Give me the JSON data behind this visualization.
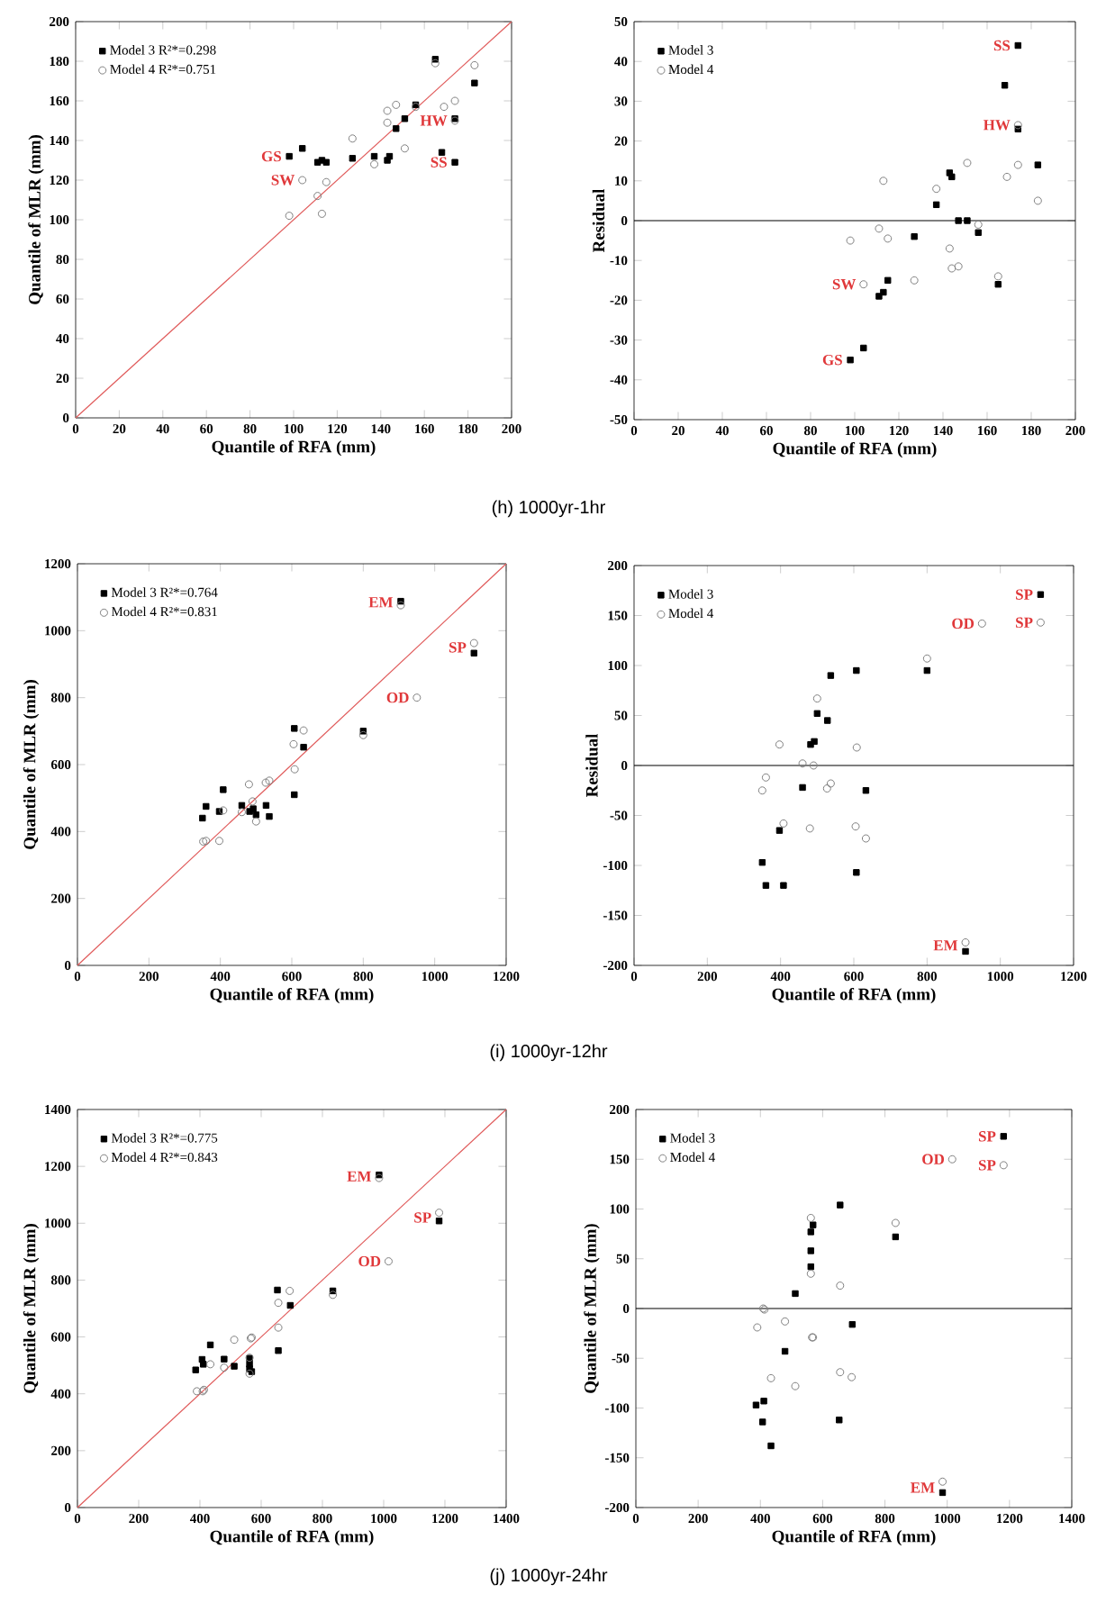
{
  "chart_data": [
    {
      "type": "scatter",
      "xlabel": "Quantile of RFA (mm)",
      "ylabel": "Quantile of MLR (mm)",
      "xlim": [
        0,
        200
      ],
      "ylim": [
        0,
        200
      ],
      "xticks": [
        0,
        20,
        40,
        60,
        80,
        100,
        120,
        140,
        160,
        180,
        200
      ],
      "yticks": [
        0,
        20,
        40,
        60,
        80,
        100,
        120,
        140,
        160,
        180,
        200
      ],
      "legend": "top left",
      "series": [
        {
          "name": "Model 3  R²*=0.298",
          "color": "#000000",
          "marker": "square",
          "x": [
            98,
            104,
            111,
            113,
            115,
            127,
            137,
            143,
            144,
            147,
            151,
            156,
            165,
            168,
            174,
            174,
            183
          ],
          "values": [
            132,
            136,
            129,
            130,
            129,
            131,
            132,
            130,
            132,
            146,
            151,
            158,
            181,
            134,
            129,
            151,
            169
          ]
        },
        {
          "name": "Model 4  R²*=0.751",
          "color": "#808080",
          "marker": "circle",
          "x": [
            98,
            104,
            111,
            113,
            115,
            127,
            137,
            143,
            143,
            147,
            151,
            156,
            165,
            169,
            174,
            174,
            183
          ],
          "values": [
            102,
            120,
            112,
            103,
            119,
            141,
            128,
            155,
            149,
            158,
            136,
            157,
            179,
            157,
            160,
            150,
            178
          ]
        },
        {
          "type": "line",
          "color": "#e05a5a",
          "marker": "none",
          "x": [
            0,
            200
          ],
          "values": [
            0,
            200
          ]
        }
      ],
      "annotations": [
        {
          "text": "GS",
          "x": 98,
          "y": 132
        },
        {
          "text": "SW",
          "x": 104,
          "y": 120
        },
        {
          "text": "HW",
          "x": 174,
          "y": 150
        },
        {
          "text": "SS",
          "x": 174,
          "y": 129
        },
        "(h)  1000yr-1hr"
      ]
    },
    {
      "type": "scatter",
      "xlabel": "Quantile of RFA (mm)",
      "ylabel": "Residual",
      "xlim": [
        0,
        200
      ],
      "ylim": [
        -50,
        50
      ],
      "xticks": [
        0,
        20,
        40,
        60,
        80,
        100,
        120,
        140,
        160,
        180,
        200
      ],
      "yticks": [
        -50,
        -40,
        -30,
        -20,
        -10,
        0,
        10,
        20,
        30,
        40,
        50
      ],
      "legend": "top left",
      "series": [
        {
          "name": "Model 3",
          "color": "#000000",
          "marker": "square",
          "x": [
            98,
            104,
            111,
            113,
            115,
            127,
            137,
            143,
            144,
            147,
            151,
            156,
            165,
            168,
            174,
            174,
            183
          ],
          "values": [
            -35,
            -32,
            -19,
            -18,
            -15,
            -4,
            4,
            12,
            11,
            0,
            0,
            -3,
            -16,
            34,
            44,
            23,
            14
          ]
        },
        {
          "name": "Model 4",
          "color": "#808080",
          "marker": "circle",
          "x": [
            98,
            104,
            111,
            113,
            115,
            127,
            137,
            143,
            144,
            147,
            151,
            156,
            165,
            169,
            174,
            174,
            183
          ],
          "values": [
            -5,
            -16,
            -2,
            10,
            -4.5,
            -15,
            8,
            -7,
            -12,
            -11.5,
            14.5,
            -1,
            -14,
            11,
            14,
            24,
            5
          ]
        }
      ],
      "ref_lines": [
        {
          "axis": "y",
          "value": 0,
          "color": "#000000"
        }
      ],
      "annotations": [
        {
          "text": "SS",
          "x": 174,
          "y": 44
        },
        {
          "text": "HW",
          "x": 174,
          "y": 24
        },
        {
          "text": "SW",
          "x": 104,
          "y": -16
        },
        {
          "text": "GS",
          "x": 98,
          "y": -35
        }
      ]
    },
    {
      "type": "scatter",
      "xlabel": "Quantile of RFA (mm)",
      "ylabel": "Quantile of MLR (mm)",
      "xlim": [
        0,
        1200
      ],
      "ylim": [
        0,
        1200
      ],
      "xticks": [
        0,
        200,
        400,
        600,
        800,
        1000,
        1200
      ],
      "yticks": [
        0,
        200,
        400,
        600,
        800,
        1000,
        1200
      ],
      "legend": "top left",
      "series": [
        {
          "name": "Model 3  R²*=0.764",
          "color": "#000000",
          "marker": "square",
          "x": [
            350,
            360,
            397,
            408,
            460,
            482,
            492,
            500,
            528,
            537,
            607,
            607,
            633,
            800,
            905,
            1110
          ],
          "values": [
            440,
            475,
            460,
            525,
            478,
            460,
            468,
            450,
            478,
            445,
            510,
            708,
            652,
            700,
            1088,
            933
          ]
        },
        {
          "name": "Model 4  R²*=0.831",
          "color": "#808080",
          "marker": "circle",
          "x": [
            352,
            360,
            397,
            408,
            460,
            480,
            490,
            500,
            527,
            537,
            605,
            608,
            633,
            800,
            905,
            950,
            1110
          ],
          "values": [
            370,
            372,
            372,
            463,
            458,
            541,
            490,
            430,
            546,
            552,
            661,
            586,
            702,
            688,
            1076,
            800,
            963
          ]
        },
        {
          "type": "line",
          "color": "#e05a5a",
          "marker": "none",
          "x": [
            0,
            1200
          ],
          "values": [
            0,
            1200
          ]
        }
      ],
      "annotations": [
        {
          "text": "EM",
          "x": 905,
          "y": 1085
        },
        {
          "text": "SP",
          "x": 1110,
          "y": 950
        },
        {
          "text": "OD",
          "x": 950,
          "y": 800
        },
        "(i)  1000yr-12hr"
      ]
    },
    {
      "type": "scatter",
      "xlabel": "Quantile of RFA (mm)",
      "ylabel": "Residual",
      "xlim": [
        0,
        1200
      ],
      "ylim": [
        -200,
        200
      ],
      "xticks": [
        0,
        200,
        400,
        600,
        800,
        1000,
        1200
      ],
      "yticks": [
        -200,
        -150,
        -100,
        -50,
        0,
        50,
        100,
        150,
        200
      ],
      "legend": "top left",
      "series": [
        {
          "name": "Model 3",
          "color": "#000000",
          "marker": "square",
          "x": [
            350,
            360,
            397,
            408,
            460,
            482,
            492,
            500,
            528,
            537,
            607,
            607,
            633,
            800,
            905,
            1110
          ],
          "values": [
            -97,
            -120,
            -65,
            -120,
            -22,
            21,
            24,
            52,
            45,
            90,
            95,
            -107,
            -25,
            95,
            -186,
            171
          ]
        },
        {
          "name": "Model 4",
          "color": "#808080",
          "marker": "circle",
          "x": [
            350,
            360,
            397,
            408,
            460,
            480,
            490,
            500,
            527,
            537,
            605,
            608,
            633,
            800,
            905,
            950,
            1110
          ],
          "values": [
            -25,
            -12,
            21,
            -58,
            2,
            -63,
            0,
            67,
            -23,
            -18,
            -61,
            18,
            -73,
            107,
            -177,
            142,
            143
          ]
        }
      ],
      "ref_lines": [
        {
          "axis": "y",
          "value": 0,
          "color": "#000000"
        }
      ],
      "annotations": [
        {
          "text": "SP",
          "x": 1110,
          "y": 171
        },
        {
          "text": "OD",
          "x": 950,
          "y": 142
        },
        {
          "text": "SP",
          "x": 1110,
          "y": 143
        },
        {
          "text": "EM",
          "x": 905,
          "y": -180
        }
      ]
    },
    {
      "type": "scatter",
      "xlabel": "Quantile of RFA (mm)",
      "ylabel": "Quantile of MLR (mm)",
      "xlim": [
        0,
        1400
      ],
      "ylim": [
        0,
        1400
      ],
      "xticks": [
        0,
        200,
        400,
        600,
        800,
        1000,
        1200,
        1400
      ],
      "yticks": [
        0,
        200,
        400,
        600,
        800,
        1000,
        1200,
        1400
      ],
      "legend": "top left",
      "series": [
        {
          "name": "Model 3  R²*=0.775",
          "color": "#000000",
          "marker": "square",
          "x": [
            386,
            407,
            411,
            434,
            479,
            512,
            562,
            562,
            562,
            569,
            656,
            653,
            695,
            834,
            985,
            1181
          ],
          "values": [
            484,
            521,
            504,
            572,
            522,
            497,
            525,
            504,
            488,
            478,
            552,
            765,
            711,
            762,
            1170,
            1008
          ]
        },
        {
          "name": "Model 4  R²*=0.843",
          "color": "#808080",
          "marker": "circle",
          "x": [
            390,
            409,
            413,
            479,
            434,
            512,
            562,
            562,
            566,
            569,
            656,
            656,
            693,
            834,
            985,
            1016,
            1181
          ],
          "values": [
            409,
            409,
            414,
            492,
            504,
            590,
            527,
            471,
            595,
            598,
            633,
            720,
            762,
            748,
            1159,
            866,
            1037
          ]
        },
        {
          "type": "line",
          "color": "#e05a5a",
          "marker": "none",
          "x": [
            0,
            1400
          ],
          "values": [
            0,
            1400
          ]
        }
      ],
      "annotations": [
        {
          "text": "EM",
          "x": 985,
          "y": 1165
        },
        {
          "text": "SP",
          "x": 1181,
          "y": 1020
        },
        {
          "text": "OD",
          "x": 1016,
          "y": 866
        },
        "(j)  1000yr-24hr"
      ]
    },
    {
      "type": "scatter",
      "xlabel": "Quantile of RFA (mm)",
      "ylabel": "Quantile of MLR (mm)",
      "xlim": [
        0,
        1400
      ],
      "ylim": [
        -200,
        200
      ],
      "xticks": [
        0,
        200,
        400,
        600,
        800,
        1000,
        1200,
        1400
      ],
      "yticks": [
        -200,
        -150,
        -100,
        -50,
        0,
        50,
        100,
        150,
        200
      ],
      "legend": "top left",
      "series": [
        {
          "name": "Model 3",
          "color": "#000000",
          "marker": "square",
          "x": [
            386,
            407,
            411,
            434,
            479,
            512,
            562,
            562,
            562,
            569,
            656,
            653,
            695,
            834,
            985,
            1181
          ],
          "values": [
            -97,
            -114,
            -93,
            -138,
            -43,
            15,
            42,
            58,
            77,
            84,
            104,
            -112,
            -16,
            72,
            -185,
            173
          ]
        },
        {
          "name": "Model 4",
          "color": "#808080",
          "marker": "circle",
          "x": [
            390,
            409,
            413,
            479,
            434,
            512,
            562,
            562,
            566,
            569,
            656,
            656,
            693,
            834,
            985,
            1016,
            1181
          ],
          "values": [
            -19,
            0,
            -1,
            -13,
            -70,
            -78,
            35,
            91,
            -29,
            -29,
            23,
            -64,
            -69,
            86,
            -174,
            150,
            144
          ]
        }
      ],
      "ref_lines": [
        {
          "axis": "y",
          "value": 0,
          "color": "#000000"
        }
      ],
      "annotations": [
        {
          "text": "SP",
          "x": 1181,
          "y": 173
        },
        {
          "text": "OD",
          "x": 1016,
          "y": 150
        },
        {
          "text": "SP",
          "x": 1181,
          "y": 144
        },
        {
          "text": "EM",
          "x": 985,
          "y": -180
        }
      ]
    }
  ]
}
